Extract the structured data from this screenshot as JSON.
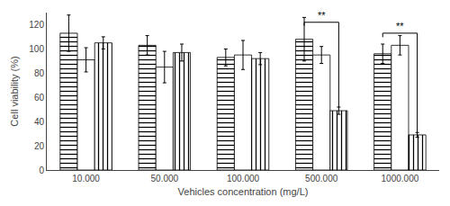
{
  "chart_data": {
    "type": "bar",
    "categories": [
      "10.000",
      "50.000",
      "100.000",
      "500.000",
      "1000.000"
    ],
    "series": [
      {
        "color": "#ffffff",
        "marker": "horizontal-hatch",
        "values": [
          113,
          103,
          93,
          108,
          96
        ],
        "errors": [
          15,
          8,
          7,
          18,
          8
        ]
      },
      {
        "color": "#ffffff",
        "marker": "plain",
        "values": [
          91,
          85,
          95,
          95,
          103
        ],
        "errors": [
          10,
          13,
          12,
          7,
          8
        ]
      },
      {
        "color": "#ffffff",
        "marker": "vertical-hatch",
        "values": [
          105,
          97,
          92,
          49,
          29
        ],
        "errors": [
          5,
          7,
          5,
          3,
          2
        ]
      }
    ],
    "xlabel": "Vehicles concentration (mg/L)",
    "ylabel": "Cell viability (%)",
    "ylim": [
      0,
      130
    ],
    "yticks": [
      0,
      20,
      40,
      60,
      80,
      100,
      120
    ],
    "grid": false,
    "annotations": [
      {
        "text": "**",
        "x": "500.000",
        "y": 122,
        "bracket_end": 52
      },
      {
        "text": "**",
        "x": "1000.000",
        "y": 113,
        "bracket_end": 31
      }
    ]
  }
}
